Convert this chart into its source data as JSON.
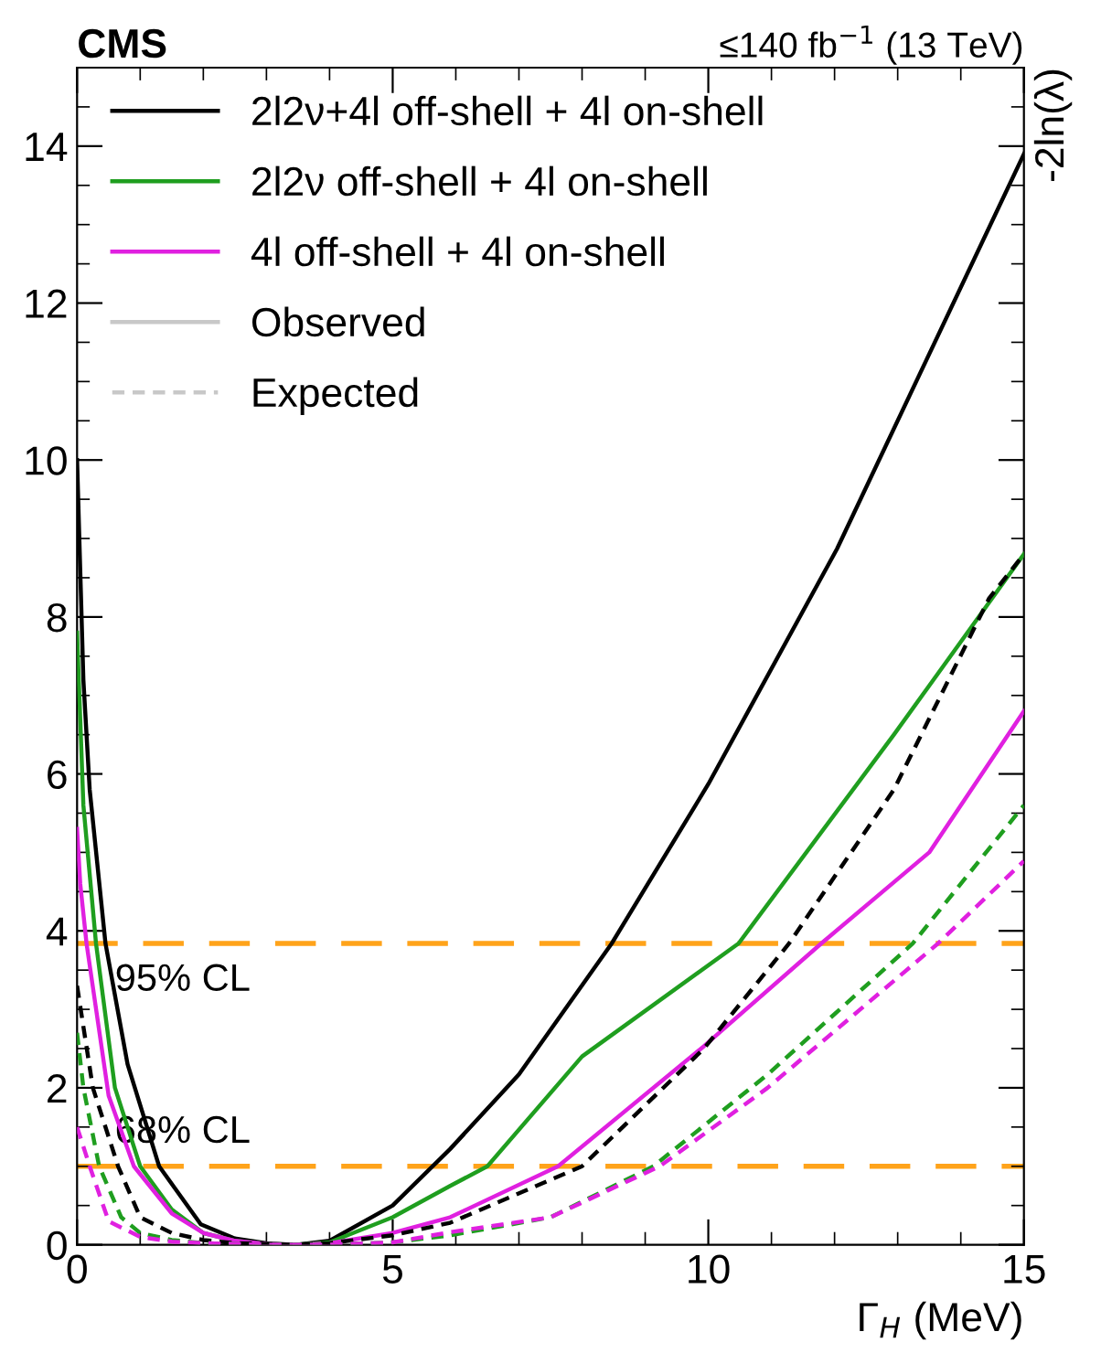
{
  "chart_data": {
    "type": "line",
    "title": "CMS",
    "subtitle": "≤140 fb$^{−1}$ (13 TeV)",
    "xlabel": "Γ$_{H}$ (MeV)",
    "ylabel": "-2ln(λ)",
    "xlim": [
      0,
      15
    ],
    "xticks": [
      0,
      5,
      10,
      15
    ],
    "ylim": [
      0,
      15
    ],
    "yticks": [
      0,
      2,
      4,
      6,
      8,
      10,
      12,
      14
    ],
    "grid": false,
    "legend": "top",
    "marker": "none",
    "annotations": [
      "Observed",
      "Expected"
    ],
    "ref_lines": [
      {
        "axis": "y",
        "value": 3.84,
        "label": "95% CL",
        "color": "#ffa31a",
        "line_style": "dashed"
      },
      {
        "axis": "y",
        "value": 1,
        "label": "68% CL",
        "color": "#ffa31a",
        "line_style": "dashed"
      }
    ],
    "series": [
      {
        "name": "2l2ν+4l off-shell + 4l on-shell",
        "color": "#000000",
        "line_style": "solid",
        "x": [
          0,
          0.1,
          0.2,
          0.45,
          0.8,
          1.3,
          1.96,
          2.5,
          3,
          3.46,
          4,
          5,
          5.91,
          7,
          8.47,
          10,
          12.04,
          15
        ],
        "values": [
          10.0,
          7.2,
          5.8,
          3.84,
          2.3,
          1,
          0.26,
          0.08,
          0.02,
          0,
          0.05,
          0.5,
          1.22,
          2.17,
          3.84,
          5.87,
          8.87,
          13.9
        ]
      },
      {
        "name": "2l2ν off-shell + 4l on-shell",
        "color": "#1f9e1f",
        "line_style": "solid",
        "x": [
          0,
          0.1,
          0.3,
          0.6,
          1.0,
          1.5,
          2,
          2.5,
          3,
          3.46,
          4,
          5,
          5.91,
          6.5,
          8,
          10.48,
          12.94,
          15
        ],
        "values": [
          7.8,
          5.6,
          3.84,
          2.0,
          1,
          0.45,
          0.15,
          0.05,
          0.01,
          0,
          0.03,
          0.35,
          0.75,
          1,
          2.4,
          3.84,
          6.5,
          8.8
        ]
      },
      {
        "name": "4l off-shell + 4l on-shell",
        "color": "#e020e0",
        "line_style": "solid",
        "x": [
          0,
          0.05,
          0.15,
          0.5,
          0.9,
          1.5,
          2,
          2.5,
          3,
          3.46,
          4,
          5,
          5.91,
          7.62,
          9.93,
          11.79,
          13.5,
          15
        ],
        "values": [
          5.3,
          4.6,
          3.84,
          1.9,
          1,
          0.4,
          0.15,
          0.05,
          0.01,
          0,
          0.02,
          0.15,
          0.35,
          1,
          2.53,
          3.84,
          5.0,
          6.8
        ]
      },
      {
        "color": "#000000",
        "line_style": "dashed",
        "x": [
          0,
          0.25,
          0.65,
          1.0,
          1.5,
          2,
          2.5,
          3,
          3.46,
          4,
          5,
          5.91,
          8,
          9.93,
          11.28,
          12.94,
          14.45,
          15
        ],
        "values": [
          3.3,
          2,
          1,
          0.35,
          0.15,
          0.06,
          0.02,
          0.01,
          0,
          0.02,
          0.12,
          0.28,
          1,
          2.5,
          3.84,
          5.8,
          8.24,
          8.8
        ]
      },
      {
        "color": "#1f9e1f",
        "line_style": "dashed",
        "x": [
          0,
          0.1,
          0.35,
          0.7,
          1.0,
          1.5,
          2,
          2.5,
          3,
          3.46,
          4,
          5,
          5.91,
          7.5,
          9.13,
          10.94,
          13.24,
          15
        ],
        "values": [
          2.7,
          2,
          1,
          0.35,
          0.15,
          0.06,
          0.02,
          0.01,
          0,
          0,
          0,
          0.03,
          0.12,
          0.35,
          1,
          2.17,
          3.84,
          5.6
        ]
      },
      {
        "color": "#e020e0",
        "line_style": "dashed",
        "x": [
          0,
          0.2,
          0.5,
          1.0,
          1.5,
          2,
          2.5,
          3,
          3.46,
          4,
          5,
          5.91,
          7.5,
          9.23,
          10.94,
          13.64,
          15
        ],
        "values": [
          1.5,
          1,
          0.3,
          0.1,
          0.04,
          0.02,
          0.01,
          0,
          0,
          0,
          0.03,
          0.16,
          0.35,
          1,
          2.0,
          3.84,
          4.89
        ]
      }
    ]
  }
}
